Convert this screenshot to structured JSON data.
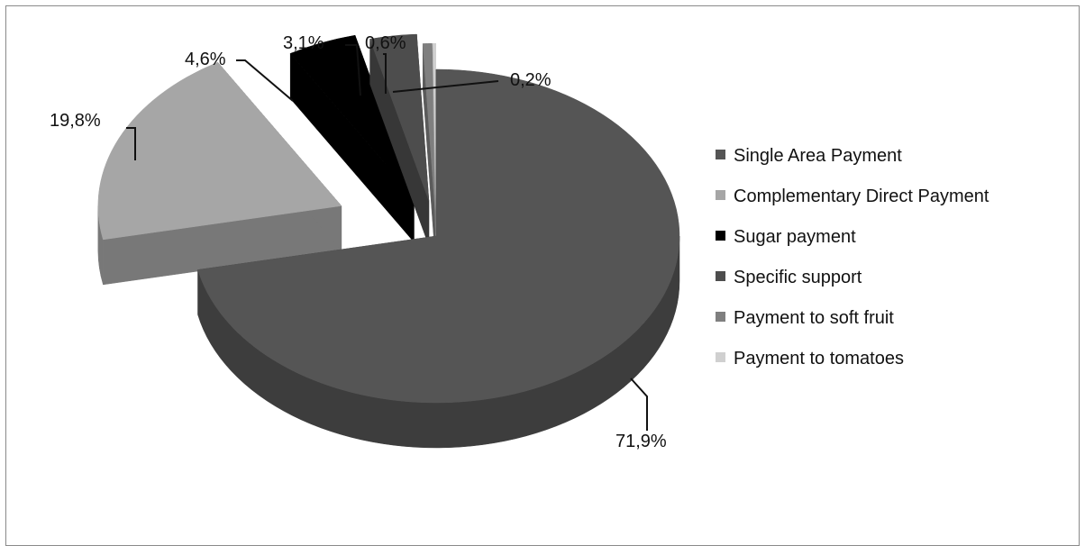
{
  "chart_data": {
    "type": "pie",
    "style": "3d-exploded",
    "legend_position": "right",
    "series": [
      {
        "name": "Single Area Payment",
        "value": 71.9,
        "label": "71,9%",
        "color": "#555555"
      },
      {
        "name": "Complementary Direct Payment",
        "value": 19.8,
        "label": "19,8%",
        "color": "#a6a6a6"
      },
      {
        "name": "Sugar payment",
        "value": 4.6,
        "label": "4,6%",
        "color": "#000000"
      },
      {
        "name": "Specific support",
        "value": 3.1,
        "label": "3,1%",
        "color": "#4d4d4d"
      },
      {
        "name": "Payment to soft fruit",
        "value": 0.6,
        "label": "0,6%",
        "color": "#7f7f7f"
      },
      {
        "name": "Payment to tomatoes",
        "value": 0.2,
        "label": "0,2%",
        "color": "#d0d0d0"
      }
    ]
  }
}
